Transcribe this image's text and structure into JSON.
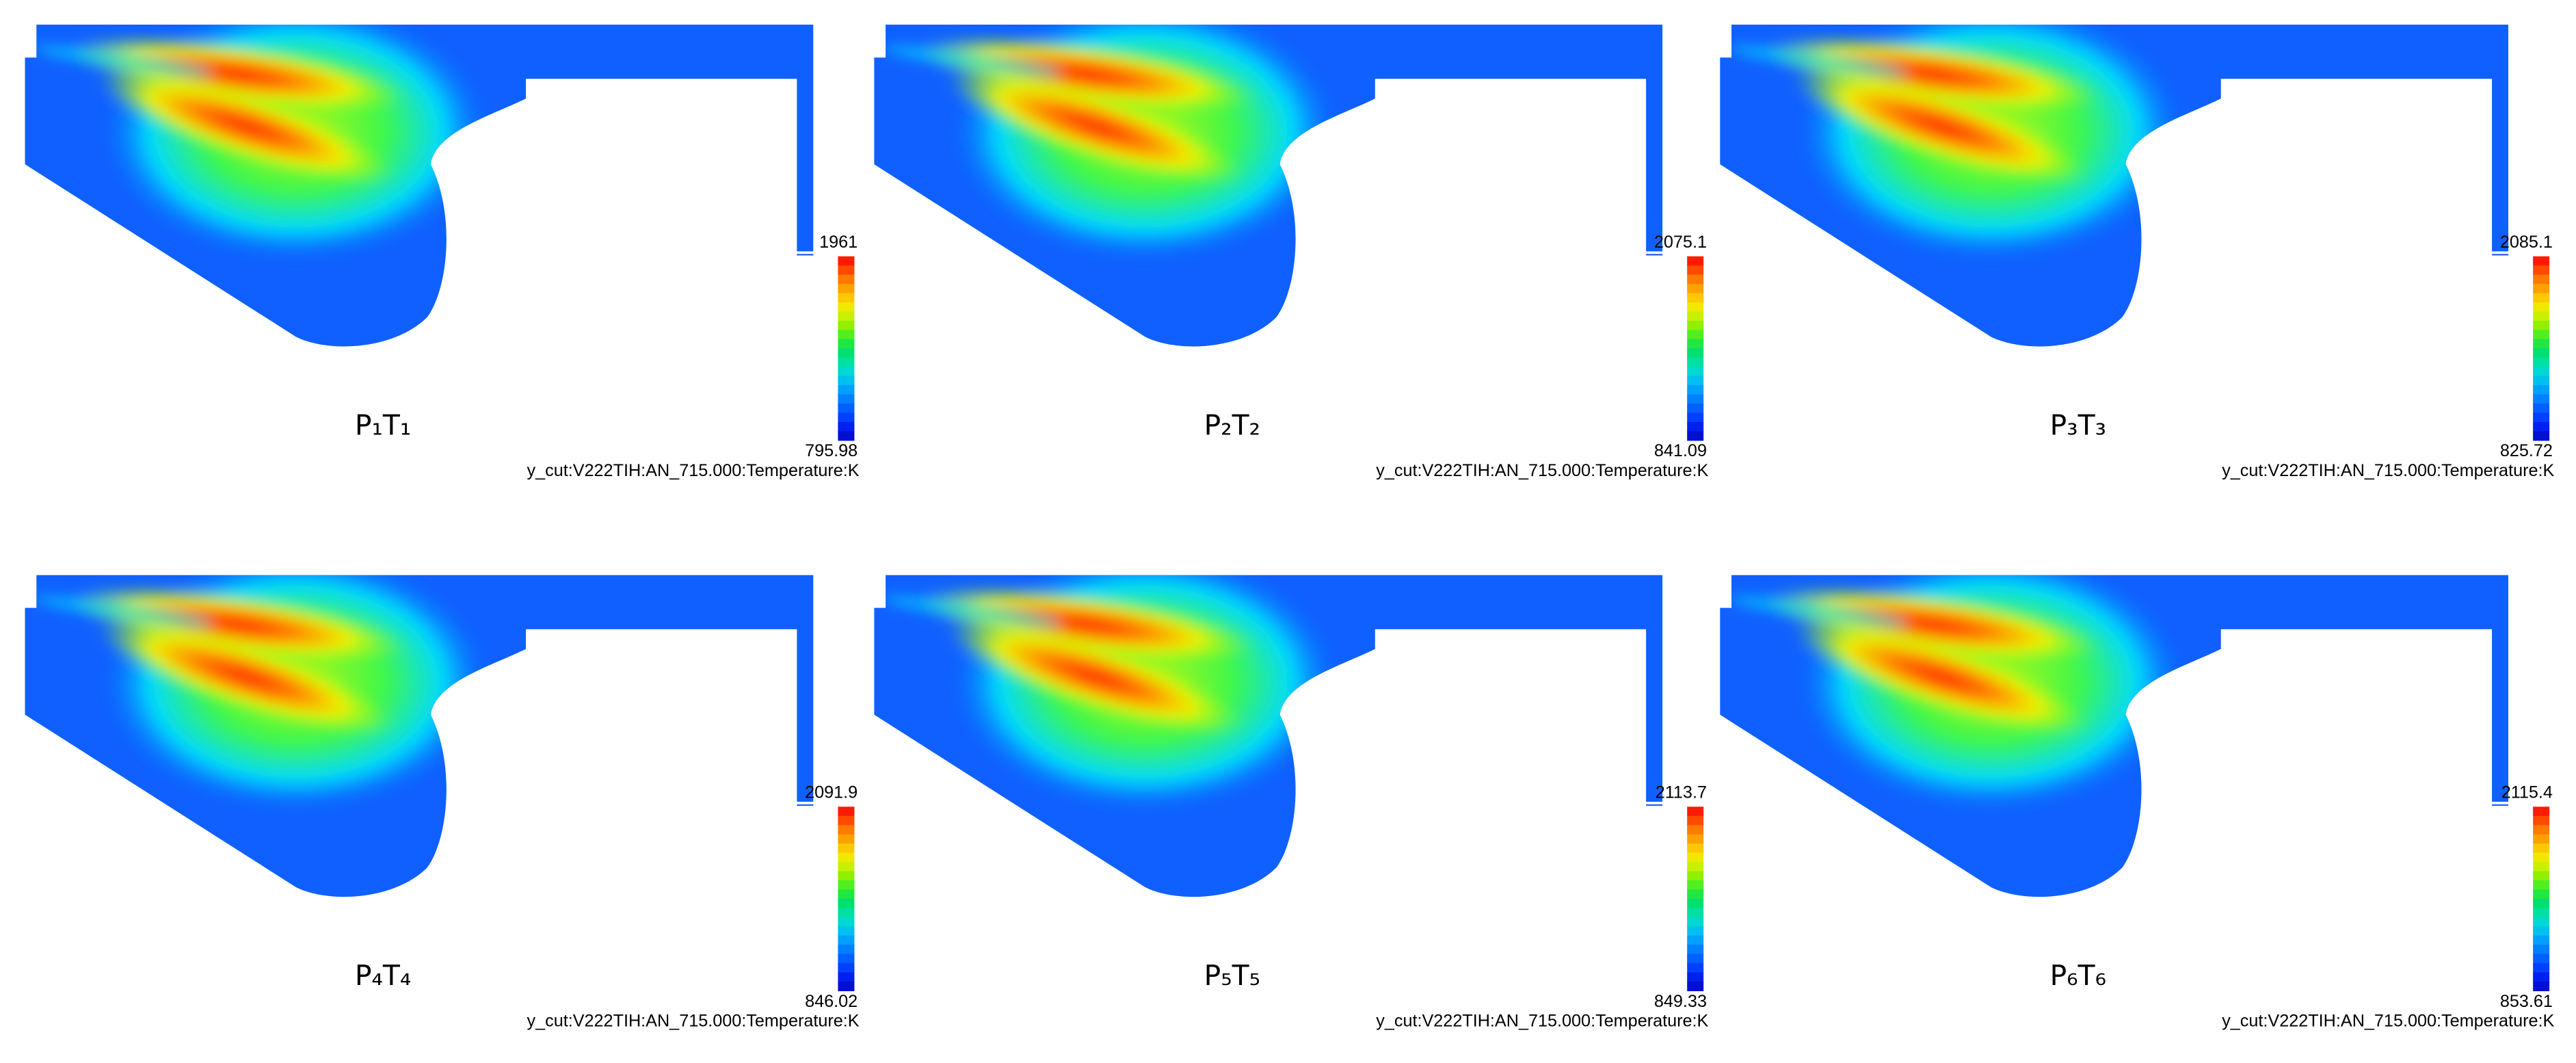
{
  "panels": [
    {
      "label": "P₁T₁",
      "max": 1961,
      "min": 795.98,
      "caption": "y_cut:V222TIH:AN_715.000:Temperature:K"
    },
    {
      "label": "P₂T₂",
      "max": 2075.1,
      "min": 841.09,
      "caption": "y_cut:V222TIH:AN_715.000:Temperature:K"
    },
    {
      "label": "P₃T₃",
      "max": 2085.1,
      "min": 825.72,
      "caption": "y_cut:V222TIH:AN_715.000:Temperature:K"
    },
    {
      "label": "P₄T₄",
      "max": 2091.9,
      "min": 846.02,
      "caption": "y_cut:V222TIH:AN_715.000:Temperature:K"
    },
    {
      "label": "P₅T₅",
      "max": 2113.7,
      "min": 849.33,
      "caption": "y_cut:V222TIH:AN_715.000:Temperature:K"
    },
    {
      "label": "P₆T₆",
      "max": 2115.4,
      "min": 853.61,
      "caption": "y_cut:V222TIH:AN_715.000:Temperature:K"
    }
  ]
}
